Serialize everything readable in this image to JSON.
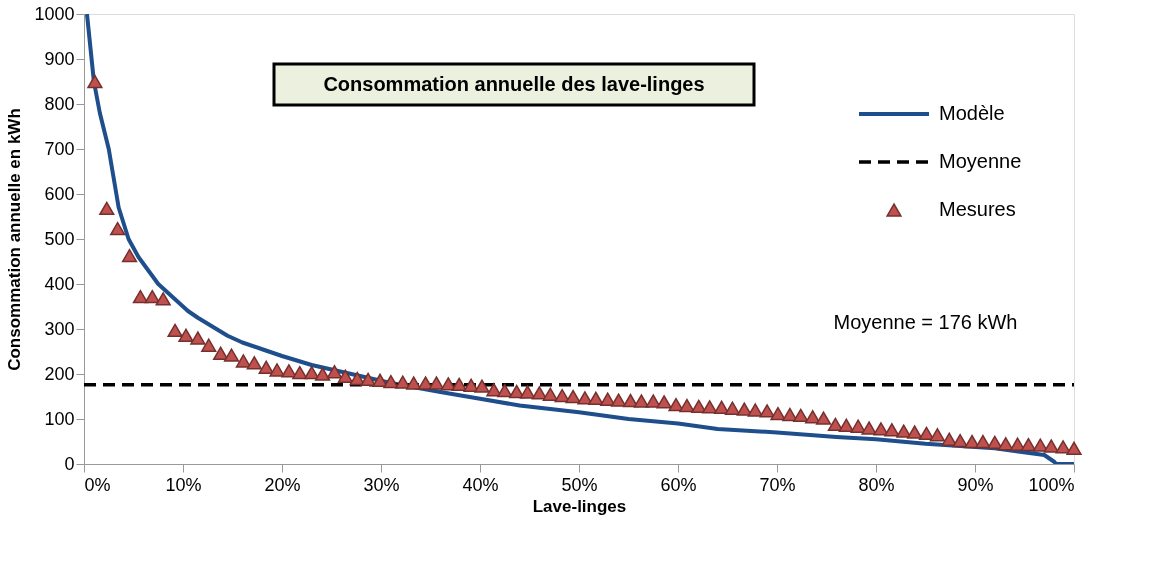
{
  "chart_data": {
    "type": "line",
    "title": "Consommation annuelle des lave-linges",
    "xlabel": "Lave-linges",
    "ylabel": "Consommation annuelle en kWh",
    "xlim": [
      0,
      100
    ],
    "ylim": [
      0,
      1000
    ],
    "xticks": [
      {
        "value": 0,
        "label": "0%"
      },
      {
        "value": 10,
        "label": "10%"
      },
      {
        "value": 20,
        "label": "20%"
      },
      {
        "value": 30,
        "label": "30%"
      },
      {
        "value": 40,
        "label": "40%"
      },
      {
        "value": 50,
        "label": "50%"
      },
      {
        "value": 60,
        "label": "60%"
      },
      {
        "value": 70,
        "label": "70%"
      },
      {
        "value": 80,
        "label": "80%"
      },
      {
        "value": 90,
        "label": "90%"
      },
      {
        "value": 100,
        "label": "100%"
      }
    ],
    "yticks": [
      0,
      100,
      200,
      300,
      400,
      500,
      600,
      700,
      800,
      900,
      1000
    ],
    "grid": false,
    "legend": "top right",
    "annotations": [
      {
        "text": "Moyenne = 176 kWh",
        "x": 85,
        "y": 176
      }
    ],
    "series": [
      {
        "name": "Modèle",
        "type": "line",
        "color": "#1f4e8c",
        "line_style": "solid",
        "marker": "none",
        "x": [
          0.3,
          1.0,
          1.6,
          2.5,
          3.5,
          4.5,
          5.5,
          6.5,
          7.5,
          8.5,
          9.5,
          10.5,
          11.5,
          13,
          14.5,
          16,
          18,
          20,
          23,
          27,
          31,
          36,
          40,
          44,
          50,
          55,
          60,
          64,
          70,
          76,
          80,
          85,
          92,
          97,
          98,
          98.2,
          100
        ],
        "values": [
          1000,
          850,
          780,
          700,
          570,
          500,
          460,
          430,
          400,
          380,
          360,
          340,
          325,
          305,
          285,
          270,
          255,
          240,
          220,
          200,
          180,
          160,
          145,
          130,
          115,
          100,
          90,
          78,
          70,
          60,
          55,
          45,
          35,
          20,
          5,
          0,
          0
        ]
      },
      {
        "name": "Moyenne",
        "type": "line",
        "color": "#000000",
        "line_style": "dashed",
        "marker": "none",
        "x": [
          0,
          100
        ],
        "values": [
          176,
          176
        ]
      },
      {
        "name": "Mesures",
        "type": "scatter",
        "color": "#c0504d",
        "marker": "triangle",
        "x": [
          1.1,
          2.3,
          3.4,
          4.6,
          5.7,
          6.9,
          8.0,
          9.2,
          10.3,
          11.5,
          12.6,
          13.8,
          14.9,
          16.1,
          17.2,
          18.4,
          19.5,
          20.7,
          21.8,
          23.0,
          24.1,
          25.3,
          26.4,
          27.6,
          28.7,
          29.9,
          31.0,
          32.2,
          33.3,
          34.5,
          35.6,
          36.8,
          37.9,
          39.1,
          40.2,
          41.4,
          42.5,
          43.7,
          44.8,
          46.0,
          47.1,
          48.3,
          49.4,
          50.6,
          51.7,
          52.9,
          54.0,
          55.2,
          56.3,
          57.5,
          58.6,
          59.8,
          60.9,
          62.1,
          63.2,
          64.4,
          65.5,
          66.7,
          67.8,
          69.0,
          70.1,
          71.3,
          72.4,
          73.6,
          74.7,
          75.9,
          77.0,
          78.2,
          79.3,
          80.5,
          81.6,
          82.8,
          83.9,
          85.1,
          86.2,
          87.4,
          88.5,
          89.7,
          90.8,
          92.0,
          93.1,
          94.3,
          95.4,
          96.6,
          97.7,
          98.9,
          100.0
        ],
        "values": [
          850,
          568,
          523,
          463,
          372,
          372,
          367,
          297,
          286,
          280,
          264,
          246,
          242,
          229,
          225,
          215,
          209,
          207,
          203,
          203,
          200,
          205,
          195,
          190,
          188,
          186,
          183,
          182,
          180,
          180,
          180,
          178,
          177,
          175,
          173,
          165,
          163,
          161,
          160,
          158,
          155,
          152,
          150,
          147,
          146,
          144,
          142,
          141,
          140,
          140,
          138,
          132,
          130,
          128,
          127,
          126,
          124,
          122,
          120,
          118,
          112,
          110,
          108,
          105,
          102,
          88,
          86,
          84,
          80,
          78,
          76,
          73,
          71,
          68,
          65,
          55,
          52,
          50,
          50,
          48,
          45,
          44,
          43,
          42,
          40,
          38,
          35
        ]
      }
    ]
  }
}
